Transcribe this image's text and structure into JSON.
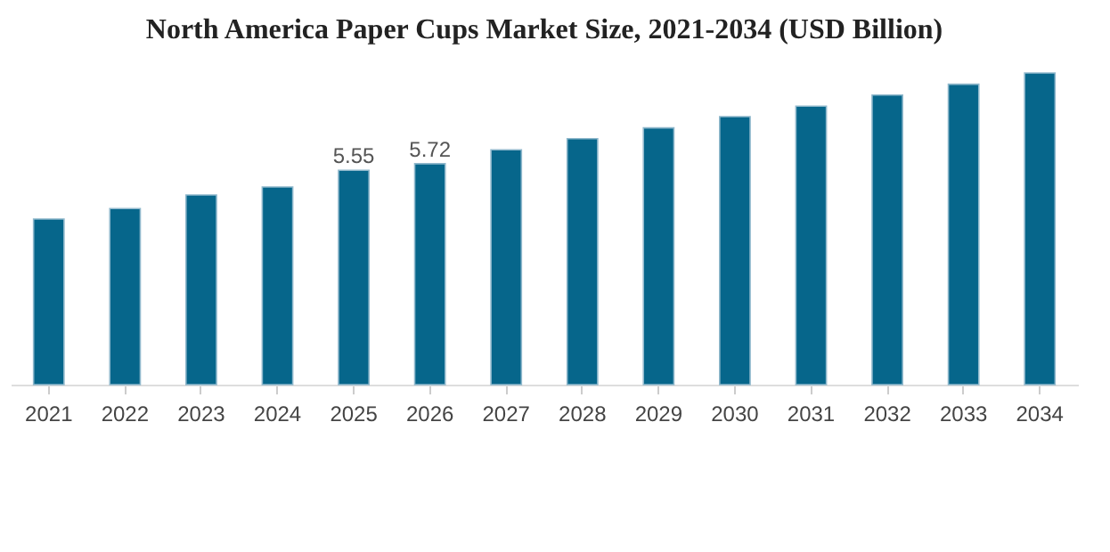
{
  "chart_data": {
    "type": "bar",
    "title": "North America Paper Cups Market Size, 2021-2034 (USD Billion)",
    "categories": [
      "2021",
      "2022",
      "2023",
      "2024",
      "2025",
      "2026",
      "2027",
      "2028",
      "2029",
      "2030",
      "2031",
      "2032",
      "2033",
      "2034"
    ],
    "values": [
      4.29,
      4.56,
      4.91,
      5.12,
      5.55,
      5.72,
      6.08,
      6.37,
      6.65,
      6.94,
      7.21,
      7.5,
      7.78,
      8.07
    ],
    "value_labels": [
      null,
      null,
      null,
      null,
      "5.55",
      "5.72",
      null,
      null,
      null,
      null,
      null,
      null,
      null,
      null
    ],
    "color": "#06668b"
  }
}
